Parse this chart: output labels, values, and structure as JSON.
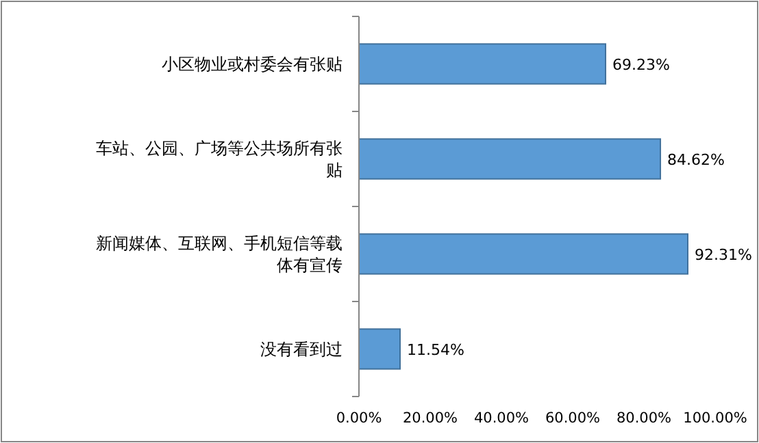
{
  "chart_data": {
    "type": "bar",
    "orientation": "horizontal",
    "categories": [
      "小区物业或村委会有张贴",
      "车站、公园、广场等公共场所有张贴",
      "新闻媒体、互联网、手机短信等载体有宣传",
      "没有看到过"
    ],
    "values": [
      69.23,
      84.62,
      92.31,
      11.54
    ],
    "value_labels": [
      "69.23%",
      "84.62%",
      "92.31%",
      "11.54%"
    ],
    "color": "#5b9bd5",
    "xlim": [
      0,
      100
    ],
    "xticks": [
      {
        "value": 0,
        "label": "0.00%"
      },
      {
        "value": 20,
        "label": "20.00%"
      },
      {
        "value": 40,
        "label": "40.00%"
      },
      {
        "value": 60,
        "label": "60.00%"
      },
      {
        "value": 80,
        "label": "80.00%"
      },
      {
        "value": 100,
        "label": "100.00%"
      }
    ],
    "grid": false
  }
}
